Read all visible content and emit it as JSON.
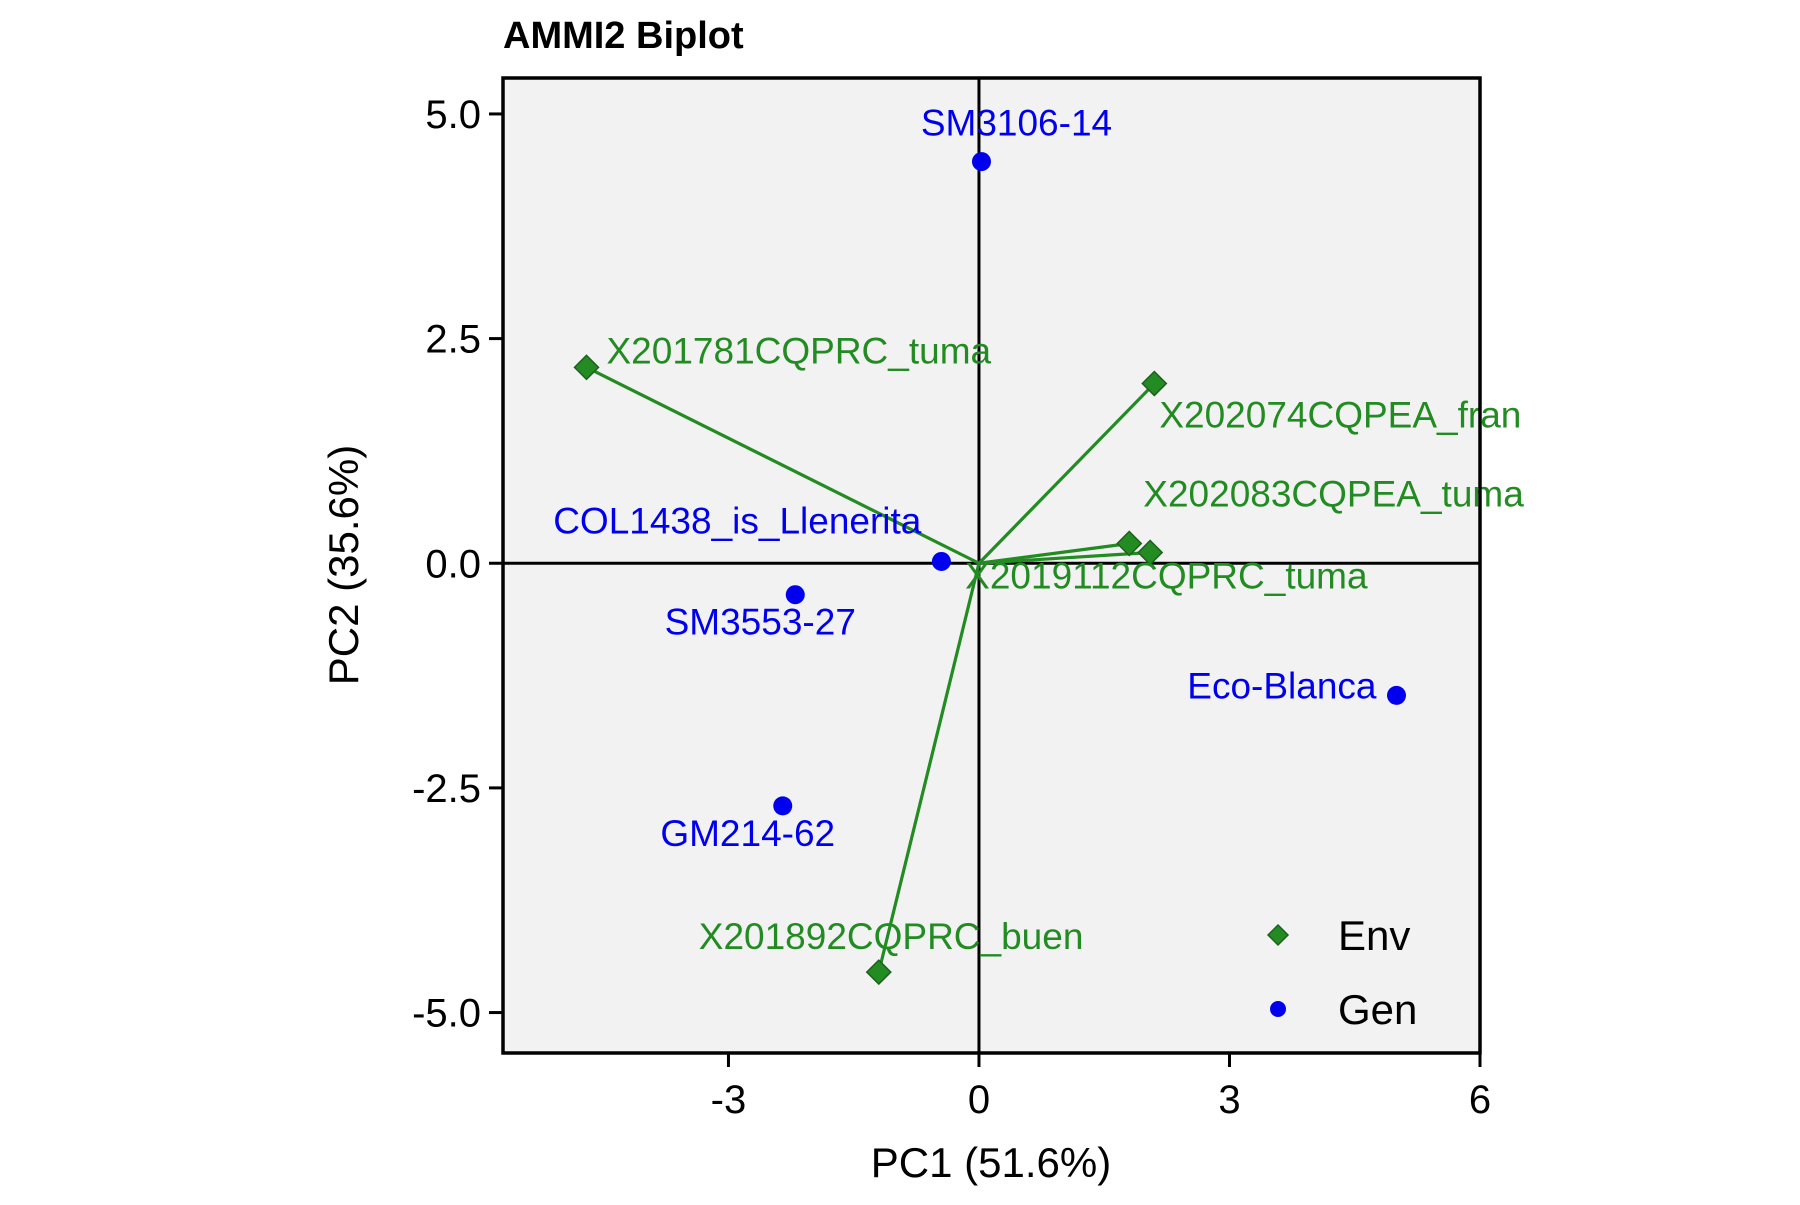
{
  "chart_data": {
    "type": "scatter",
    "title": "AMMI2 Biplot",
    "xlabel": "PC1 (51.6%)",
    "ylabel": "PC2 (35.6%)",
    "xlim": [
      -5.7,
      6
    ],
    "ylim": [
      -5.45,
      5.4
    ],
    "xticks": [
      -3,
      0,
      3,
      6
    ],
    "xtick_labels": [
      "-3",
      "0",
      "3",
      "6"
    ],
    "yticks": [
      5,
      2.5,
      0,
      -2.5,
      -5
    ],
    "ytick_labels": [
      "5.0",
      "2.5",
      "0.0",
      "-2.5",
      "-5.0"
    ],
    "grid": false,
    "background": "#f2f2f2",
    "legend_position": "bottom-right",
    "series": [
      {
        "name": "Env",
        "marker": "diamond",
        "color": "#228B22",
        "vectors_from_origin": true,
        "points": [
          {
            "label": "X201781CQPRC_tuma",
            "x": -4.7,
            "y": 2.18
          },
          {
            "label": "X202074CQPEA_fran",
            "x": 2.1,
            "y": 2.0
          },
          {
            "label": "X202083CQPEA_tuma",
            "x": 1.8,
            "y": 0.22
          },
          {
            "label": "X2019112CQPRC_tuma",
            "x": 2.05,
            "y": 0.12
          },
          {
            "label": "X201892CQPRC_buen",
            "x": -1.2,
            "y": -4.55
          }
        ]
      },
      {
        "name": "Gen",
        "marker": "circle",
        "color": "#0000ee",
        "vectors_from_origin": false,
        "points": [
          {
            "label": "SM3106-14",
            "x": 0.03,
            "y": 4.47
          },
          {
            "label": "COL1438_is_Llenerita",
            "x": -0.45,
            "y": 0.02
          },
          {
            "label": "SM3553-27",
            "x": -2.2,
            "y": -0.35
          },
          {
            "label": "Eco-Blanca",
            "x": 5.0,
            "y": -1.47
          },
          {
            "label": "GM214-62",
            "x": -2.35,
            "y": -2.7
          }
        ]
      }
    ],
    "colors": {
      "env": "#228B22",
      "gen": "#0000ee",
      "env_marker_edge": "#1f5f1f"
    }
  }
}
